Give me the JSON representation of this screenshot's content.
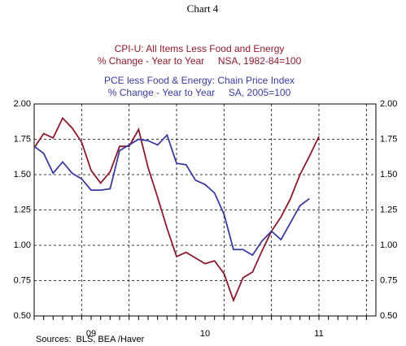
{
  "chart_data": {
    "type": "line",
    "title": "Chart 4",
    "source": "Sources:  BLS, BEA /Haver",
    "categories": [
      null,
      null,
      null,
      null,
      null,
      null,
      "09",
      null,
      null,
      null,
      null,
      null,
      null,
      null,
      null,
      null,
      null,
      null,
      "10",
      null,
      null,
      null,
      null,
      null,
      null,
      null,
      null,
      null,
      null,
      null,
      "11",
      null,
      null,
      null,
      null,
      null
    ],
    "series": [
      {
        "name": "CPI-U: All Items Less Food and Energy",
        "description": "% Change - Year to Year     NSA, 1982-84=100",
        "color": "#8b1a2e",
        "values": [
          1.69,
          1.79,
          1.76,
          1.9,
          1.83,
          1.73,
          1.53,
          1.44,
          1.52,
          1.7,
          1.7,
          1.82,
          1.55,
          1.34,
          1.12,
          0.92,
          0.95,
          0.91,
          0.87,
          0.89,
          0.8,
          0.61,
          0.77,
          0.81,
          0.96,
          1.1,
          1.2,
          1.33,
          1.5,
          1.63,
          1.77,
          null,
          null,
          null,
          null,
          null
        ]
      },
      {
        "name": "PCE less Food & Energy: Chain Price Index",
        "description": "% Change - Year to Year     SA, 2005=100",
        "color": "#3b3b9b",
        "values": [
          1.7,
          1.65,
          1.51,
          1.59,
          1.51,
          1.47,
          1.39,
          1.39,
          1.4,
          1.67,
          1.71,
          1.75,
          1.74,
          1.71,
          1.78,
          1.58,
          1.57,
          1.46,
          1.43,
          1.37,
          1.22,
          0.97,
          0.97,
          0.93,
          1.03,
          1.1,
          1.04,
          1.16,
          1.28,
          1.33,
          null,
          null,
          null,
          null,
          null,
          null
        ]
      }
    ],
    "ylim": [
      0.5,
      2.0
    ],
    "yticks": [
      {
        "value": 0.5,
        "label": "0.50"
      },
      {
        "value": 0.75,
        "label": "0.75"
      },
      {
        "value": 1.0,
        "label": "1.00"
      },
      {
        "value": 1.25,
        "label": "1.25"
      },
      {
        "value": 1.5,
        "label": "1.50"
      },
      {
        "value": 1.75,
        "label": "1.75"
      },
      {
        "value": 2.0,
        "label": "2.00"
      }
    ],
    "grid": true
  }
}
